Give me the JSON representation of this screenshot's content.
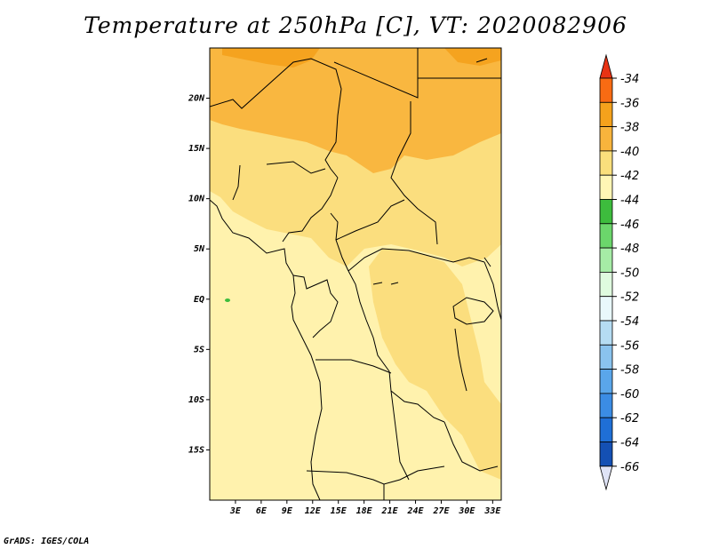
{
  "title": "Temperature at 250hPa [C], VT: 2020082906",
  "credit": "GrADS: IGES/COLA",
  "map": {
    "lat_range": [
      -20,
      25
    ],
    "lon_range": [
      0,
      34
    ],
    "lat_ticks": [
      {
        "value": 20,
        "label": "20N"
      },
      {
        "value": 15,
        "label": "15N"
      },
      {
        "value": 10,
        "label": "10N"
      },
      {
        "value": 5,
        "label": "5N"
      },
      {
        "value": 0,
        "label": "EQ"
      },
      {
        "value": -5,
        "label": "5S"
      },
      {
        "value": -10,
        "label": "10S"
      },
      {
        "value": -15,
        "label": "15S"
      }
    ],
    "lon_ticks": [
      {
        "value": 3,
        "label": "3E"
      },
      {
        "value": 6,
        "label": "6E"
      },
      {
        "value": 9,
        "label": "9E"
      },
      {
        "value": 12,
        "label": "12E"
      },
      {
        "value": 15,
        "label": "15E"
      },
      {
        "value": 18,
        "label": "18E"
      },
      {
        "value": 21,
        "label": "21E"
      },
      {
        "value": 24,
        "label": "24E"
      },
      {
        "value": 27,
        "label": "27E"
      },
      {
        "value": 30,
        "label": "30E"
      },
      {
        "value": 33,
        "label": "33E"
      }
    ]
  },
  "colorbar": {
    "levels": [
      {
        "label": "-34",
        "color": "#f86b13"
      },
      {
        "label": "-36",
        "color": "#f5a21c"
      },
      {
        "label": "-38",
        "color": "#f8b43c"
      },
      {
        "label": "-40",
        "color": "#fadf7c"
      },
      {
        "label": "-42",
        "color": "#fff6b5"
      },
      {
        "label": "-44",
        "color": "#3dbc3d"
      },
      {
        "label": "-46",
        "color": "#6bd66b"
      },
      {
        "label": "-48",
        "color": "#a6eca6"
      },
      {
        "label": "-50",
        "color": "#dffbdf"
      },
      {
        "label": "-52",
        "color": "#e9f8fb"
      },
      {
        "label": "-54",
        "color": "#b5dcf3"
      },
      {
        "label": "-56",
        "color": "#8ac3ee"
      },
      {
        "label": "-58",
        "color": "#5aa6ea"
      },
      {
        "label": "-60",
        "color": "#3b8ce4"
      },
      {
        "label": "-62",
        "color": "#1f6fd6"
      },
      {
        "label": "-64",
        "color": "#1450b4"
      },
      {
        "label": "-66",
        "color": "#0c1f74"
      }
    ],
    "top_arrow_color": "#e83314",
    "bottom_arrow_color": "#dfe3f6"
  }
}
